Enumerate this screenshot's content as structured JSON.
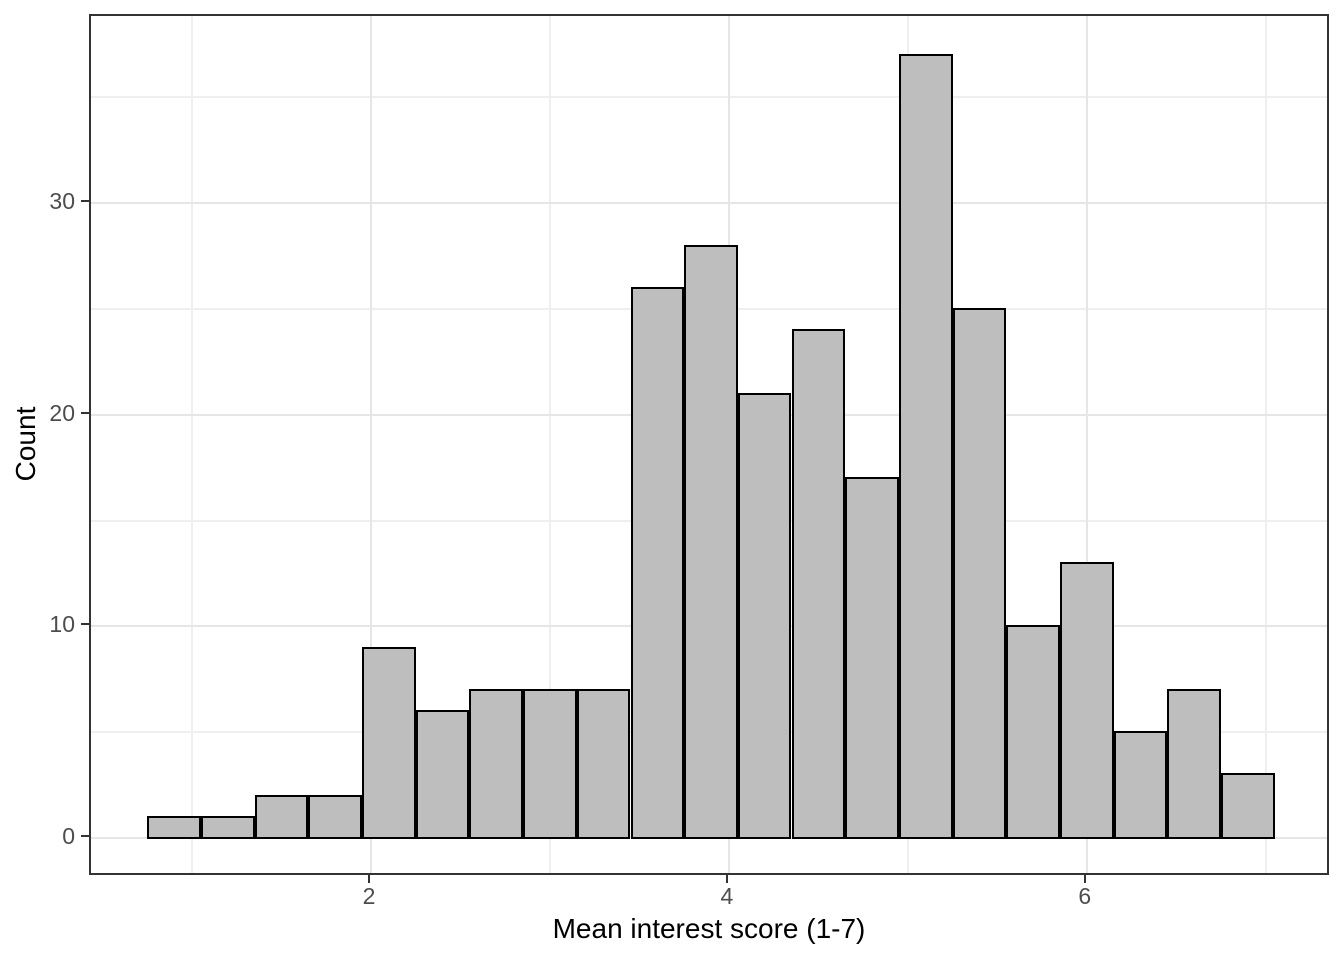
{
  "chart_data": {
    "type": "bar",
    "subtype": "histogram",
    "title": "",
    "xlabel": "Mean interest score (1-7)",
    "ylabel": "Count",
    "bin_width": 0.3,
    "bin_edges": [
      0.75,
      1.05,
      1.35,
      1.65,
      1.95,
      2.25,
      2.55,
      2.85,
      3.15,
      3.45,
      3.75,
      4.05,
      4.35,
      4.65,
      4.95,
      5.25,
      5.55,
      5.85,
      6.15,
      6.45,
      6.75,
      7.05
    ],
    "bin_centers": [
      0.9,
      1.2,
      1.5,
      1.8,
      2.1,
      2.4,
      2.7,
      3.0,
      3.3,
      3.6,
      3.9,
      4.2,
      4.5,
      4.8,
      5.1,
      5.4,
      5.7,
      6.0,
      6.3,
      6.6,
      6.9
    ],
    "counts": [
      1,
      1,
      2,
      2,
      9,
      6,
      7,
      7,
      7,
      26,
      28,
      21,
      24,
      17,
      37,
      25,
      10,
      13,
      5,
      7,
      3
    ],
    "x_tick_values": [
      2,
      4,
      6
    ],
    "x_tick_labels": [
      "2",
      "4",
      "6"
    ],
    "x_minor_gridlines": [
      1,
      3,
      5,
      7
    ],
    "y_tick_values": [
      0,
      10,
      20,
      30
    ],
    "y_tick_labels": [
      "0",
      "10",
      "20",
      "30"
    ],
    "y_minor_gridlines": [
      5,
      15,
      25,
      35
    ],
    "xlim": [
      0.435,
      7.365
    ],
    "ylim": [
      -1.85,
      38.85
    ],
    "grid": true,
    "legend": "none",
    "colors": {
      "bar_fill": "#bebebe",
      "bar_stroke": "#000000",
      "panel_border": "#333333",
      "grid_major": "#e6e6e6",
      "grid_minor": "#efefef",
      "tick_mark": "#333333",
      "tick_label": "#4d4d4d",
      "axis_title": "#000000",
      "background": "#ffffff"
    }
  }
}
